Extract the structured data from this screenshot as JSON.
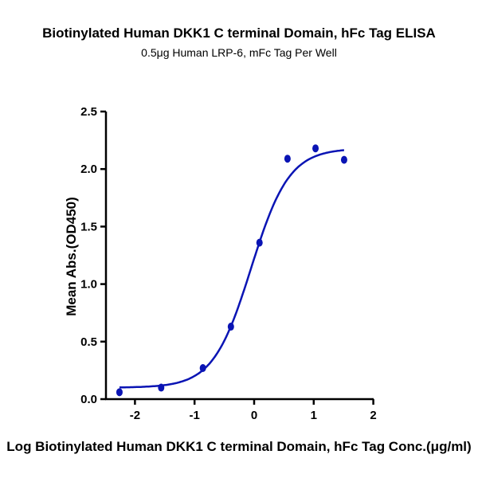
{
  "chart_data": {
    "type": "scatter",
    "title": "Biotinylated Human DKK1 C terminal Domain, hFc Tag ELISA",
    "subtitle": "0.5μg Human LRP-6, mFc Tag Per Well",
    "xlabel": "Log Biotinylated Human DKK1 C terminal Domain, hFc Tag Conc.(μg/ml)",
    "ylabel": "Mean Abs.(OD450)",
    "xlim": [
      -2.67,
      2
    ],
    "ylim": [
      0,
      2.5
    ],
    "xticks": [
      "-2",
      "-1",
      "0",
      "1",
      "2"
    ],
    "xtick_values": [
      -2,
      -1,
      0,
      1,
      2
    ],
    "yticks": [
      "0.0",
      "0.5",
      "1.0",
      "1.5",
      "2.0",
      "2.5"
    ],
    "ytick_values": [
      0,
      0.5,
      1.0,
      1.5,
      2.0,
      2.5
    ],
    "grid": false,
    "color": "#0a14b4",
    "series": [
      {
        "x": [
          -2.26,
          -1.56,
          -0.86,
          -0.39,
          0.09,
          0.56,
          1.03,
          1.51
        ],
        "y": [
          0.06,
          0.1,
          0.27,
          0.63,
          1.36,
          2.09,
          2.18,
          2.08
        ]
      }
    ],
    "fit": {
      "model": "4PL",
      "bottom": 0.1,
      "top": 2.18,
      "log_ec50": -0.05,
      "hill": 1.36,
      "x_range": [
        -2.26,
        1.51
      ]
    }
  }
}
